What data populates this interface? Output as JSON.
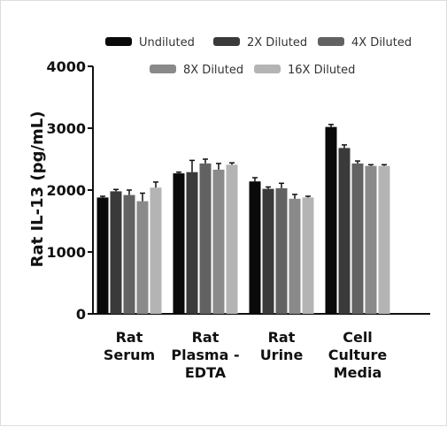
{
  "chart_data": {
    "type": "bar",
    "title": "",
    "xlabel": "",
    "ylabel": "Rat IL-13 (pg/mL)",
    "ylim": [
      0,
      4000
    ],
    "yticks": [
      0,
      1000,
      2000,
      3000,
      4000
    ],
    "grid": false,
    "legend_position": "top",
    "categories": [
      [
        "Rat",
        "Serum"
      ],
      [
        "Rat",
        "Plasma -",
        "EDTA"
      ],
      [
        "Rat",
        "Urine"
      ],
      [
        "Cell",
        "Culture",
        "Media"
      ]
    ],
    "series": [
      {
        "name": "Undiluted",
        "color": "#0a0a0a",
        "values": [
          1880,
          2270,
          2140,
          3020
        ],
        "errors": [
          20,
          20,
          60,
          40
        ]
      },
      {
        "name": "2X Diluted",
        "color": "#3a3a3a",
        "values": [
          1980,
          2290,
          2020,
          2680
        ],
        "errors": [
          30,
          190,
          30,
          50
        ]
      },
      {
        "name": "4X Diluted",
        "color": "#626262",
        "values": [
          1920,
          2430,
          2030,
          2430
        ],
        "errors": [
          80,
          70,
          80,
          40
        ]
      },
      {
        "name": "8X Diluted",
        "color": "#8a8a8a",
        "values": [
          1820,
          2330,
          1860,
          2390
        ],
        "errors": [
          130,
          100,
          70,
          20
        ]
      },
      {
        "name": "16X Diluted",
        "color": "#b4b4b4",
        "values": [
          2040,
          2410,
          1880,
          2390
        ],
        "errors": [
          90,
          30,
          20,
          20
        ]
      }
    ]
  }
}
